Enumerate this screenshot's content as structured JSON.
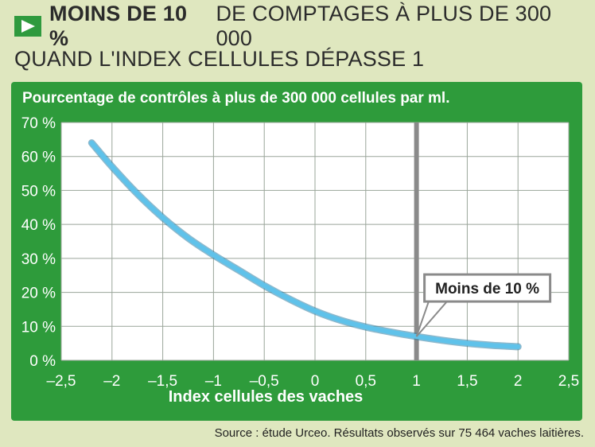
{
  "header": {
    "headline_bold": "MOINS DE 10 %",
    "headline_rest": "DE COMPTAGES À PLUS DE 300 000",
    "headline_line2": "QUAND L'INDEX CELLULES DÉPASSE 1"
  },
  "source": "Source : étude Urceo. Résultats observés sur 75 464 vaches laitières.",
  "colors": {
    "panel": "#2e9b3b",
    "curve": "#5fc2ea",
    "highlight_line": "#8a8a8a"
  },
  "chart_data": {
    "type": "line",
    "title": "Pourcentage de contrôles à plus de 300 000 cellules par ml.",
    "xlabel": "Index cellules des vaches",
    "ylabel": "",
    "xlim": [
      -2.5,
      2.5
    ],
    "ylim": [
      0,
      70
    ],
    "xticks": [
      -2.5,
      -2,
      -1.5,
      -1,
      -0.5,
      0,
      0.5,
      1,
      1.5,
      2,
      2.5
    ],
    "xtick_labels": [
      "–2,5",
      "–2",
      "–1,5",
      "–1",
      "–0,5",
      "0",
      "0,5",
      "1",
      "1,5",
      "2",
      "2,5"
    ],
    "yticks": [
      0,
      10,
      20,
      30,
      40,
      50,
      60,
      70
    ],
    "ytick_labels": [
      "0 %",
      "10 %",
      "20 %",
      "30 %",
      "40 %",
      "50 %",
      "60 %",
      "70 %"
    ],
    "grid": true,
    "x": [
      -2.2,
      -2.0,
      -1.75,
      -1.5,
      -1.25,
      -1.0,
      -0.75,
      -0.5,
      -0.25,
      0,
      0.25,
      0.5,
      0.75,
      1.0,
      1.25,
      1.5,
      1.75,
      2.0
    ],
    "y": [
      64,
      57,
      49,
      42,
      36,
      31,
      26.5,
      22,
      18,
      14.5,
      11.8,
      9.8,
      8.3,
      7,
      5.9,
      5,
      4.4,
      4
    ],
    "annotation": {
      "text": "Moins de 10 %",
      "x": 1,
      "y": 7
    },
    "vline_x": 1
  }
}
